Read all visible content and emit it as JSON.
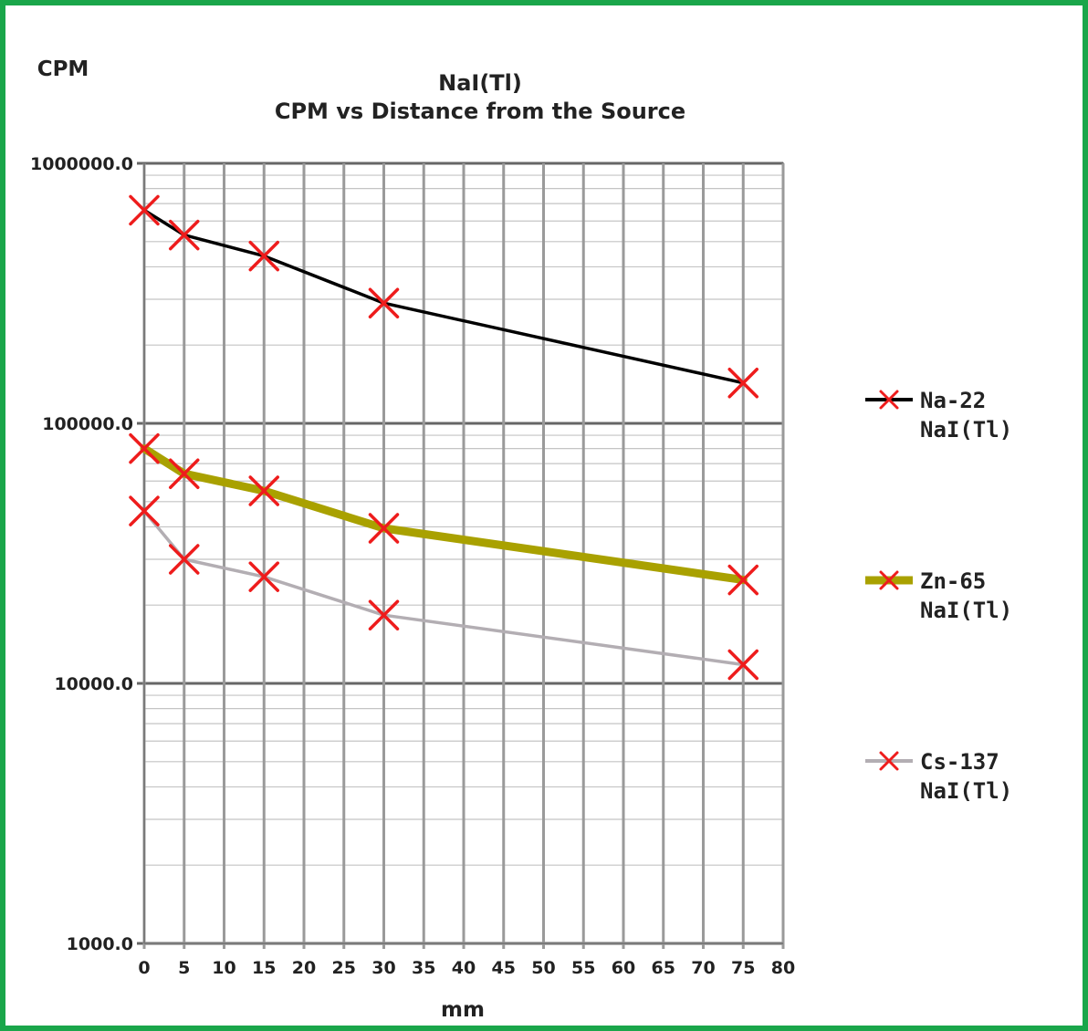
{
  "chart_data": {
    "type": "line",
    "title": "NaI(Tl)",
    "subtitle": "CPM vs Distance from the Source",
    "ylabel": "CPM",
    "xlabel": "mm",
    "y_scale": "log",
    "ylim": [
      1000,
      1000000
    ],
    "xlim": [
      0,
      80
    ],
    "x_ticks": [
      0,
      5,
      10,
      15,
      20,
      25,
      30,
      35,
      40,
      45,
      50,
      55,
      60,
      65,
      70,
      75,
      80
    ],
    "x_tick_labels": [
      "0",
      "5",
      "10",
      "15",
      "20",
      "25",
      "30",
      "35",
      "40",
      "45",
      "50",
      "55",
      "60",
      "65",
      "70",
      "75",
      "80"
    ],
    "y_ticks": [
      1000,
      10000,
      100000,
      1000000
    ],
    "y_tick_labels": [
      "1000.0",
      "10000.0",
      "100000.0",
      "1000000.0"
    ],
    "grid": true,
    "legend_position": "right",
    "marker_color": "#ee1c1c",
    "series": [
      {
        "name": "Na-22",
        "name_line2": "NaI(Tl)",
        "color": "#000000",
        "width": 3.5,
        "x": [
          0,
          5,
          15,
          30,
          75
        ],
        "y": [
          660000,
          530000,
          440000,
          290000,
          143000
        ]
      },
      {
        "name": "Zn-65",
        "name_line2": "NaI(Tl)",
        "color": "#a9a100",
        "width": 9,
        "x": [
          0,
          5,
          15,
          30,
          75
        ],
        "y": [
          80000,
          64000,
          55000,
          39500,
          25000
        ]
      },
      {
        "name": "Cs-137",
        "name_line2": "NaI(Tl)",
        "color": "#b3aeb3",
        "width": 3.5,
        "x": [
          0,
          5,
          15,
          30,
          75
        ],
        "y": [
          46000,
          30000,
          25700,
          18300,
          11800
        ]
      }
    ]
  }
}
